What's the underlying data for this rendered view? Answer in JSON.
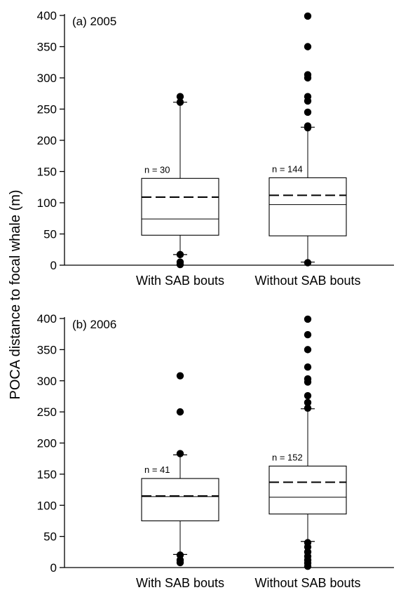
{
  "figure": {
    "ylabel": "POCA distance to focal whale (m)"
  },
  "chart_data": [
    {
      "type": "box",
      "panel_label": "(a) 2005",
      "ylim": [
        0,
        400
      ],
      "yticks": [
        0,
        50,
        100,
        150,
        200,
        250,
        300,
        350,
        400
      ],
      "categories": [
        "With SAB bouts",
        "Without SAB bouts"
      ],
      "boxes": [
        {
          "category": "With SAB bouts",
          "n_label": "n = 30",
          "q1": 48,
          "median": 74,
          "mean": 109,
          "q3": 139,
          "whisker_low": 17,
          "whisker_high": 261,
          "outliers": [
            270,
            261,
            17,
            5,
            1
          ]
        },
        {
          "category": "Without SAB bouts",
          "n_label": "n = 144",
          "q1": 47,
          "median": 97,
          "mean": 112,
          "q3": 140,
          "whisker_low": 5,
          "whisker_high": 221,
          "outliers": [
            399,
            350,
            305,
            300,
            270,
            263,
            245,
            223,
            220,
            4
          ]
        }
      ]
    },
    {
      "type": "box",
      "panel_label": "(b) 2006",
      "ylim": [
        0,
        400
      ],
      "yticks": [
        0,
        50,
        100,
        150,
        200,
        250,
        300,
        350,
        400
      ],
      "categories": [
        "With SAB bouts",
        "Without SAB bouts"
      ],
      "boxes": [
        {
          "category": "With SAB bouts",
          "n_label": "n = 41",
          "q1": 75,
          "median": 114,
          "mean": 115,
          "q3": 143,
          "whisker_low": 21,
          "whisker_high": 181,
          "outliers": [
            308,
            250,
            183,
            20,
            12,
            8
          ]
        },
        {
          "category": "Without SAB bouts",
          "n_label": "n = 152",
          "q1": 86,
          "median": 113,
          "mean": 137,
          "q3": 163,
          "whisker_low": 42,
          "whisker_high": 255,
          "outliers": [
            399,
            374,
            350,
            322,
            303,
            298,
            276,
            265,
            256,
            40,
            33,
            25,
            18,
            12,
            7,
            2
          ]
        }
      ]
    }
  ]
}
